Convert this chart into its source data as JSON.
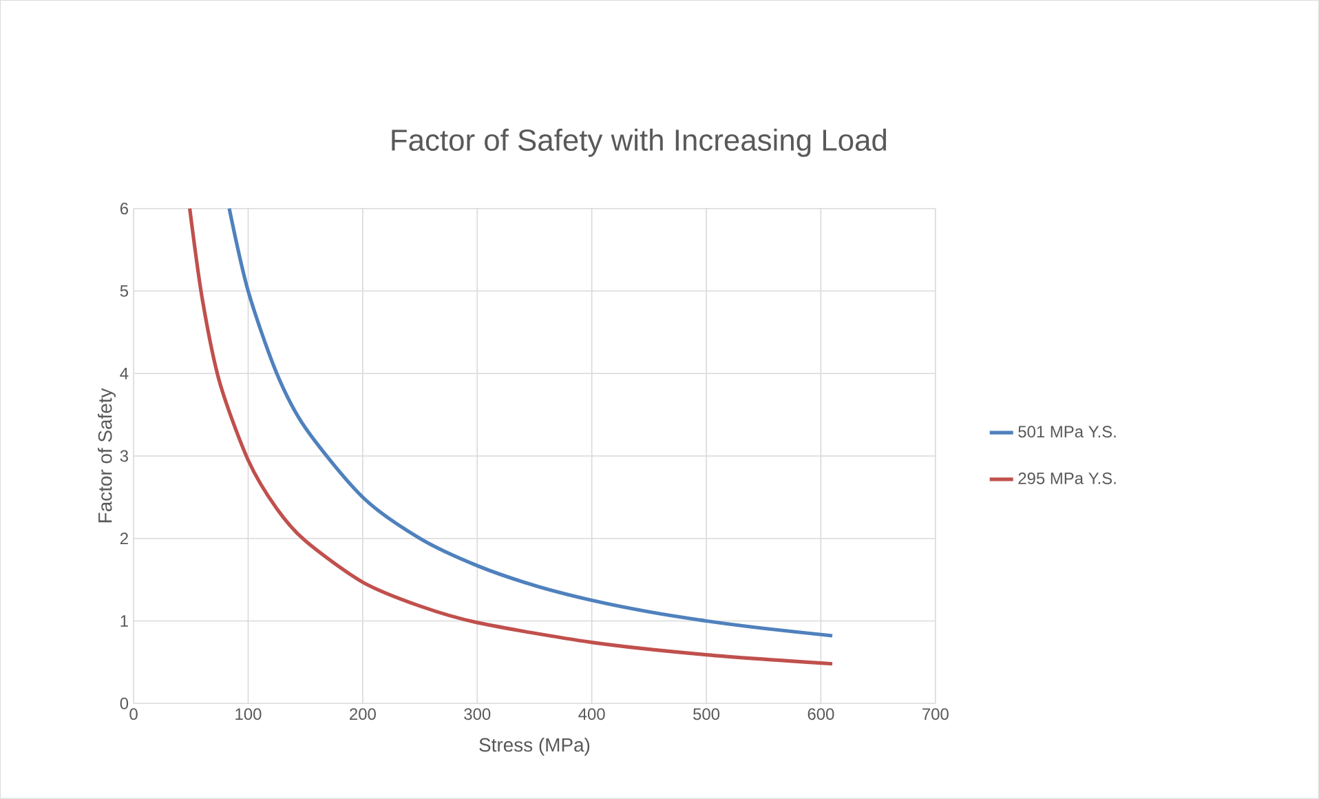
{
  "chart_data": {
    "type": "line",
    "title": "Factor of Safety with Increasing Load",
    "xlabel": "Stress (MPa)",
    "ylabel": "Factor of Safety",
    "xlim": [
      0,
      700
    ],
    "xticks": [
      0,
      100,
      200,
      300,
      400,
      500,
      600,
      700
    ],
    "ylim": [
      0,
      6
    ],
    "yticks": [
      0,
      1,
      2,
      3,
      4,
      5,
      6
    ],
    "grid": true,
    "legend": "right",
    "marker": "none",
    "line_style": "solid",
    "series": [
      {
        "name": "501 MPa Y.S.",
        "color": "#4f81bd",
        "x": [
          83.5,
          100,
          125,
          150,
          200,
          250,
          300,
          350,
          400,
          450,
          500,
          550,
          610
        ],
        "values": [
          6,
          5.0,
          4.0,
          3.34,
          2.5,
          2.0,
          1.67,
          1.43,
          1.25,
          1.11,
          1.0,
          0.91,
          0.82
        ]
      },
      {
        "name": "295 MPa Y.S.",
        "color": "#c0504d",
        "x": [
          49,
          60,
          75,
          100,
          125,
          150,
          200,
          250,
          300,
          400,
          500,
          610
        ],
        "values": [
          6,
          4.9,
          3.9,
          2.95,
          2.36,
          1.97,
          1.47,
          1.18,
          0.98,
          0.74,
          0.59,
          0.48
        ]
      }
    ]
  }
}
